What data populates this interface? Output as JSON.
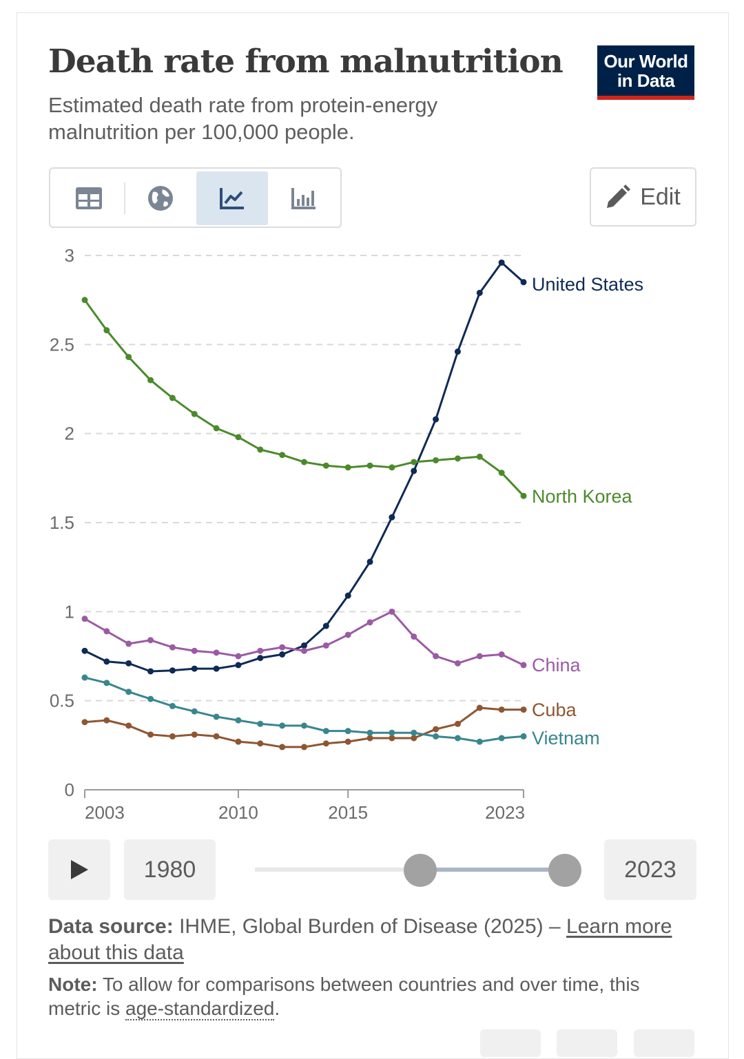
{
  "header": {
    "title": "Death rate from malnutrition",
    "subtitle": "Estimated death rate from protein-energy malnutrition per 100,000 people.",
    "logo": "Our World in Data"
  },
  "tabs": [
    {
      "name": "table",
      "icon": "table-icon"
    },
    {
      "name": "map",
      "icon": "globe-icon"
    },
    {
      "name": "chart",
      "icon": "line-chart-icon",
      "active": true
    },
    {
      "name": "bar",
      "icon": "bar-chart-icon"
    }
  ],
  "edit_label": "Edit",
  "timeline": {
    "start": "1980",
    "end": "2023",
    "range_fraction": [
      0.5,
      0.95
    ]
  },
  "footer": {
    "source_label": "Data source:",
    "source_text": "IHME, Global Burden of Disease (2025) – ",
    "learn_more": "Learn more about this data",
    "note_label": "Note:",
    "note_text": "To allow for comparisons between countries and over time, this metric is ",
    "note_link": "age-standardized",
    "note_end": "."
  },
  "chart_data": {
    "type": "line",
    "title": "",
    "xlabel": "",
    "ylabel": "",
    "x": [
      2003,
      2004,
      2005,
      2006,
      2007,
      2008,
      2009,
      2010,
      2011,
      2012,
      2013,
      2014,
      2015,
      2016,
      2017,
      2018,
      2019,
      2020,
      2021,
      2022,
      2023
    ],
    "xticks": [
      "2003",
      "2010",
      "2015",
      "2023"
    ],
    "yticks": [
      "0",
      "0.5",
      "1",
      "1.5",
      "2",
      "2.5",
      "3"
    ],
    "ylim": [
      0,
      3
    ],
    "grid": "horizontal dashed",
    "legend": "inline-right",
    "series": [
      {
        "name": "United States",
        "color": "#0e2a56",
        "values": [
          0.78,
          0.72,
          0.71,
          0.665,
          0.67,
          0.68,
          0.68,
          0.7,
          0.74,
          0.76,
          0.81,
          0.92,
          1.09,
          1.28,
          1.53,
          1.79,
          2.08,
          2.46,
          2.79,
          2.96,
          2.85
        ]
      },
      {
        "name": "North Korea",
        "color": "#4b8a2c",
        "values": [
          2.75,
          2.58,
          2.43,
          2.3,
          2.2,
          2.11,
          2.03,
          1.98,
          1.91,
          1.88,
          1.84,
          1.82,
          1.81,
          1.82,
          1.81,
          1.84,
          1.85,
          1.86,
          1.87,
          1.78,
          1.65
        ]
      },
      {
        "name": "China",
        "color": "#9b5aa3",
        "values": [
          0.96,
          0.89,
          0.82,
          0.84,
          0.8,
          0.78,
          0.77,
          0.75,
          0.78,
          0.8,
          0.78,
          0.81,
          0.87,
          0.94,
          1.0,
          0.86,
          0.75,
          0.71,
          0.75,
          0.76,
          0.7
        ]
      },
      {
        "name": "Cuba",
        "color": "#8e5631",
        "values": [
          0.38,
          0.39,
          0.36,
          0.31,
          0.3,
          0.31,
          0.3,
          0.27,
          0.26,
          0.24,
          0.24,
          0.26,
          0.27,
          0.29,
          0.29,
          0.29,
          0.34,
          0.37,
          0.46,
          0.45,
          0.45
        ]
      },
      {
        "name": "Vietnam",
        "color": "#38868e",
        "values": [
          0.63,
          0.6,
          0.55,
          0.51,
          0.47,
          0.44,
          0.41,
          0.39,
          0.37,
          0.36,
          0.36,
          0.33,
          0.33,
          0.32,
          0.32,
          0.32,
          0.3,
          0.29,
          0.27,
          0.29,
          0.3
        ]
      }
    ]
  }
}
